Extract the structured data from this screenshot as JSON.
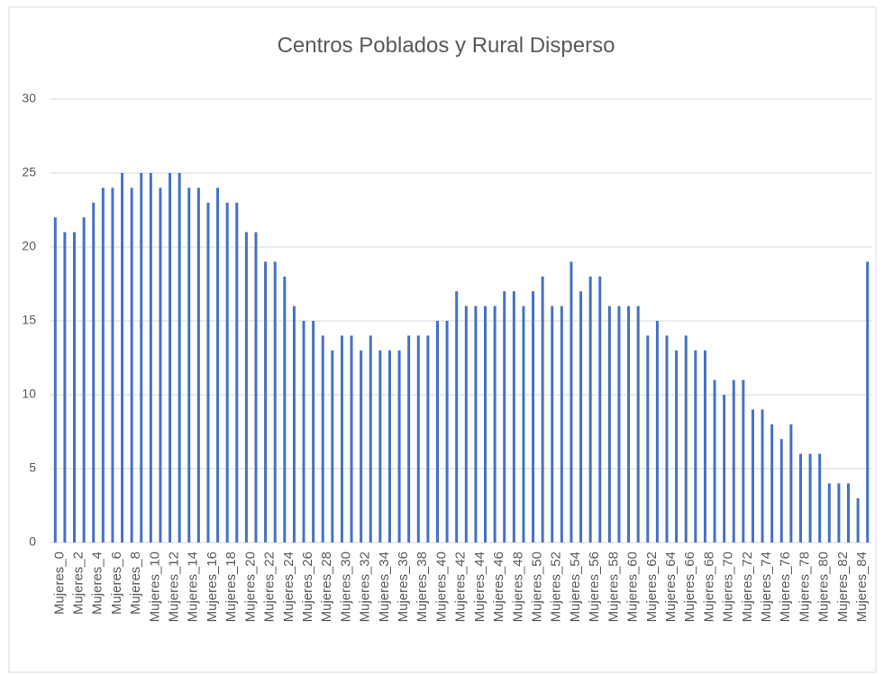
{
  "chart_data": {
    "type": "bar",
    "title": "Centros Poblados y Rural Disperso",
    "categories": [
      "Mujeres_0",
      null,
      "Mujeres_2",
      null,
      "Mujeres_4",
      null,
      "Mujeres_6",
      null,
      "Mujeres_8",
      null,
      "Mujeres_10",
      null,
      "Mujeres_12",
      null,
      "Mujeres_14",
      null,
      "Mujeres_16",
      null,
      "Mujeres_18",
      null,
      "Mujeres_20",
      null,
      "Mujeres_22",
      null,
      "Mujeres_24",
      null,
      "Mujeres_26",
      null,
      "Mujeres_28",
      null,
      "Mujeres_30",
      null,
      "Mujeres_32",
      null,
      "Mujeres_34",
      null,
      "Mujeres_36",
      null,
      "Mujeres_38",
      null,
      "Mujeres_40",
      null,
      "Mujeres_42",
      null,
      "Mujeres_44",
      null,
      "Mujeres_46",
      null,
      "Mujeres_48",
      null,
      "Mujeres_50",
      null,
      "Mujeres_52",
      null,
      "Mujeres_54",
      null,
      "Mujeres_56",
      null,
      "Mujeres_58",
      null,
      "Mujeres_60",
      null,
      "Mujeres_62",
      null,
      "Mujeres_64",
      null,
      "Mujeres_66",
      null,
      "Mujeres_68",
      null,
      "Mujeres_70",
      null,
      "Mujeres_72",
      null,
      "Mujeres_74",
      null,
      "Mujeres_76",
      null,
      "Mujeres_78",
      null,
      "Mujeres_80",
      null,
      "Mujeres_82",
      null,
      "Mujeres_84",
      null
    ],
    "values": [
      22,
      21,
      21,
      22,
      23,
      24,
      24,
      25,
      24,
      25,
      25,
      24,
      25,
      25,
      24,
      24,
      23,
      24,
      23,
      23,
      21,
      21,
      19,
      19,
      18,
      16,
      15,
      15,
      14,
      13,
      14,
      14,
      13,
      14,
      13,
      13,
      13,
      14,
      14,
      14,
      15,
      15,
      17,
      16,
      16,
      16,
      16,
      17,
      17,
      16,
      17,
      18,
      16,
      16,
      19,
      17,
      18,
      18,
      16,
      16,
      16,
      16,
      14,
      15,
      14,
      13,
      14,
      13,
      13,
      11,
      10,
      11,
      11,
      9,
      9,
      8,
      7,
      8,
      6,
      6,
      6,
      4,
      4,
      4,
      3,
      19
    ],
    "color": "#4472c4",
    "ylim": [
      0,
      30
    ],
    "yticks": [
      0,
      5,
      10,
      15,
      20,
      25,
      30
    ],
    "grid": true
  }
}
